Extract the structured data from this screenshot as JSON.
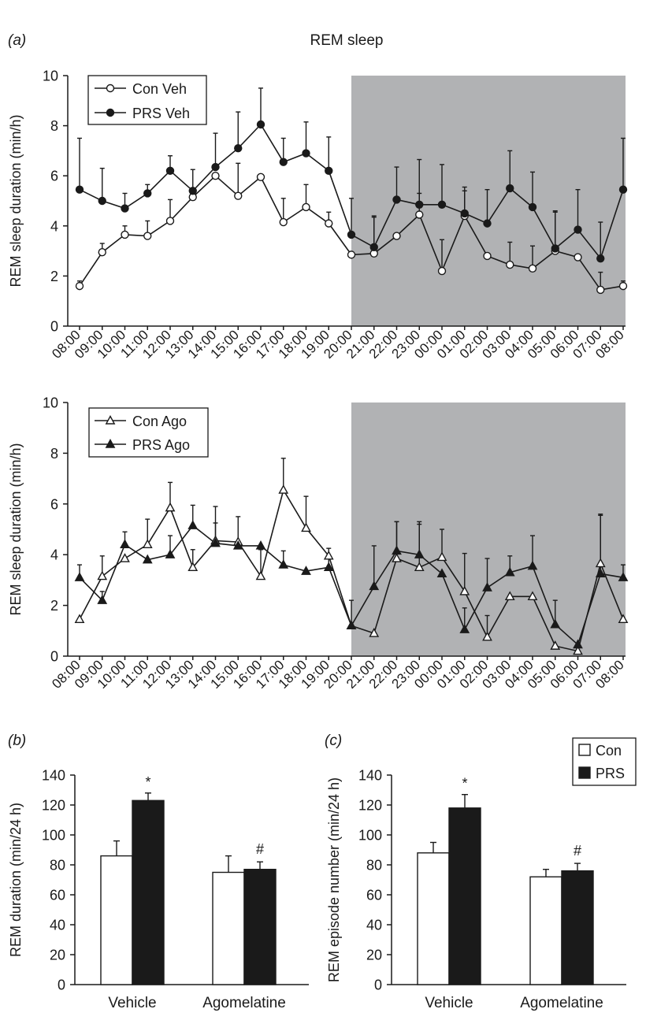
{
  "figure_title": "REM sleep",
  "chart_data": [
    {
      "type": "line",
      "panel_label": "(a)",
      "title": "REM sleep",
      "ylabel": "REM sleep duration (min/h)",
      "ylim": [
        0,
        10
      ],
      "yticks": [
        "0",
        "2",
        "4",
        "6",
        "8",
        "10"
      ],
      "x": [
        "08:00",
        "09:00",
        "10:00",
        "11:00",
        "12:00",
        "13:00",
        "14:00",
        "15:00",
        "16:00",
        "17:00",
        "18:00",
        "19:00",
        "20:00",
        "21:00",
        "22:00",
        "23:00",
        "00:00",
        "01:00",
        "02:00",
        "03:00",
        "04:00",
        "05:00",
        "06:00",
        "07:00",
        "08:00"
      ],
      "dark_period": {
        "from": "20:00",
        "to": "08:00",
        "color": "#b1b2b4"
      },
      "series": [
        {
          "name": "Con Veh",
          "marker": "open-circle",
          "values": [
            1.6,
            2.95,
            3.65,
            3.6,
            4.2,
            5.15,
            6.0,
            5.2,
            5.95,
            4.15,
            4.75,
            4.1,
            2.85,
            2.9,
            3.6,
            4.45,
            2.2,
            4.4,
            2.8,
            2.45,
            2.3,
            3.0,
            2.75,
            1.45,
            1.6
          ],
          "errors": [
            0.2,
            0.35,
            0.35,
            0.6,
            0.85,
            0.2,
            0.0,
            1.3,
            0.0,
            0.95,
            0.9,
            0.45,
            0.0,
            1.45,
            0.0,
            0.85,
            1.25,
            1.0,
            0.0,
            0.9,
            0.9,
            1.55,
            0.0,
            0.7,
            0.2
          ]
        },
        {
          "name": "PRS Veh",
          "marker": "filled-circle",
          "values": [
            5.45,
            5.0,
            4.7,
            5.3,
            6.2,
            5.4,
            6.35,
            7.1,
            8.05,
            6.55,
            6.9,
            6.2,
            3.65,
            3.15,
            5.05,
            4.85,
            4.85,
            4.5,
            4.1,
            5.5,
            4.75,
            3.1,
            3.85,
            2.7,
            5.45
          ],
          "errors": [
            2.05,
            1.3,
            0.6,
            0.35,
            0.6,
            0.85,
            1.35,
            1.45,
            1.45,
            0.95,
            1.25,
            1.35,
            1.45,
            1.25,
            1.3,
            1.8,
            1.6,
            1.05,
            1.35,
            1.5,
            1.4,
            1.5,
            1.6,
            1.45,
            2.05
          ]
        }
      ]
    },
    {
      "type": "line",
      "ylabel": "REM sleep duration (min/h)",
      "ylim": [
        0,
        10
      ],
      "yticks": [
        "0",
        "2",
        "4",
        "6",
        "8",
        "10"
      ],
      "x": [
        "08:00",
        "09:00",
        "10:00",
        "11:00",
        "12:00",
        "13:00",
        "14:00",
        "15:00",
        "16:00",
        "17:00",
        "18:00",
        "19:00",
        "20:00",
        "21:00",
        "22:00",
        "23:00",
        "00:00",
        "01:00",
        "02:00",
        "03:00",
        "04:00",
        "05:00",
        "06:00",
        "07:00",
        "08:00"
      ],
      "dark_period": {
        "from": "20:00",
        "to": "08:00",
        "color": "#b1b2b4"
      },
      "series": [
        {
          "name": "Con Ago",
          "marker": "open-triangle",
          "values": [
            1.45,
            3.15,
            3.85,
            4.4,
            5.85,
            3.5,
            4.55,
            4.5,
            3.15,
            6.55,
            5.05,
            3.95,
            1.2,
            0.9,
            3.85,
            3.5,
            3.9,
            2.55,
            0.75,
            2.35,
            2.35,
            0.4,
            0.2,
            3.65,
            1.45
          ],
          "errors": [
            0.0,
            0.8,
            0.0,
            1.0,
            1.0,
            0.7,
            1.35,
            1.0,
            1.05,
            1.25,
            1.25,
            0.0,
            1.0,
            0.0,
            1.45,
            1.8,
            1.1,
            1.5,
            0.85,
            0.0,
            0.0,
            0.0,
            0.25,
            1.95,
            0.0
          ]
        },
        {
          "name": "PRS Ago",
          "marker": "filled-triangle",
          "values": [
            3.1,
            2.2,
            4.4,
            3.8,
            4.0,
            5.15,
            4.45,
            4.35,
            4.35,
            3.6,
            3.35,
            3.5,
            1.2,
            2.75,
            4.15,
            4.0,
            3.25,
            1.05,
            2.7,
            3.3,
            3.55,
            1.25,
            0.45,
            3.25,
            3.1
          ],
          "errors": [
            0.5,
            0.35,
            0.5,
            0.0,
            0.75,
            0.8,
            0.8,
            0.0,
            0.0,
            0.55,
            0.0,
            0.75,
            0.0,
            1.6,
            1.15,
            1.2,
            0.0,
            0.85,
            1.15,
            0.65,
            1.2,
            0.95,
            0.0,
            2.3,
            0.5
          ]
        }
      ]
    },
    {
      "type": "bar",
      "panel_label": "(b)",
      "ylabel": "REM duration (min/24 h)",
      "ylim": [
        0,
        140
      ],
      "yticks": [
        "0",
        "20",
        "40",
        "60",
        "80",
        "100",
        "120",
        "140"
      ],
      "categories": [
        "Vehicle",
        "Agomelatine"
      ],
      "series": [
        {
          "name": "Con",
          "color": "#ffffff",
          "values": [
            86,
            75
          ],
          "errors": [
            10,
            11
          ]
        },
        {
          "name": "PRS",
          "color": "#1a1a1a",
          "values": [
            123,
            77
          ],
          "errors": [
            5,
            5
          ]
        }
      ],
      "annotations": [
        {
          "text": "*",
          "category": "Vehicle",
          "series": "PRS"
        },
        {
          "text": "#",
          "category": "Agomelatine",
          "series": "PRS"
        }
      ]
    },
    {
      "type": "bar",
      "panel_label": "(c)",
      "ylabel": "REM episode number (min/24 h)",
      "ylim": [
        0,
        140
      ],
      "yticks": [
        "0",
        "20",
        "40",
        "60",
        "80",
        "100",
        "120",
        "140"
      ],
      "categories": [
        "Vehicle",
        "Agomelatine"
      ],
      "series": [
        {
          "name": "Con",
          "color": "#ffffff",
          "values": [
            88,
            72
          ],
          "errors": [
            7,
            5
          ]
        },
        {
          "name": "PRS",
          "color": "#1a1a1a",
          "values": [
            118,
            76
          ],
          "errors": [
            9,
            5
          ]
        }
      ],
      "annotations": [
        {
          "text": "*",
          "category": "Vehicle",
          "series": "PRS"
        },
        {
          "text": "#",
          "category": "Agomelatine",
          "series": "PRS"
        }
      ],
      "legend": {
        "location": "top-right",
        "entries": [
          "Con",
          "PRS"
        ]
      }
    }
  ]
}
